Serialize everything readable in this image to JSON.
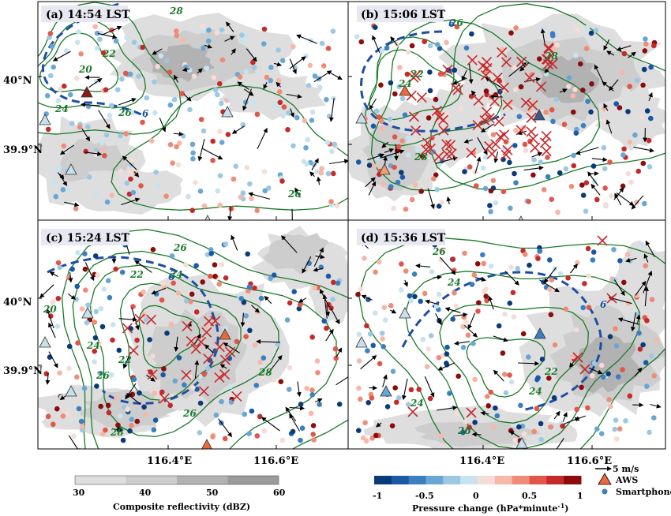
{
  "chart_data": {
    "type": "map",
    "panels": [
      {
        "title": "(a) 14:54 LST",
        "contour_labels": [
          "28",
          "20",
          "22",
          "24",
          "26",
          "26",
          "6"
        ]
      },
      {
        "title": "(b) 15:06 LST",
        "contour_labels": [
          "26",
          "28",
          "24",
          "22",
          "28",
          "6"
        ]
      },
      {
        "title": "(c) 15:24 LST",
        "contour_labels": [
          "26",
          "22",
          "24",
          "20",
          "24",
          "22",
          "26",
          "28",
          "26",
          "28",
          "6"
        ]
      },
      {
        "title": "(d) 15:36 LST",
        "contour_labels": [
          "26",
          "24",
          "24",
          "24",
          "22",
          "26",
          "6"
        ]
      }
    ],
    "x_ticks": [
      "116.4°E",
      "116.6°E"
    ],
    "y_ticks": [
      "40°N",
      "39.9°N"
    ],
    "reflectivity_colorbar": {
      "label": "Composite reflectivity (dBZ)",
      "ticks": [
        "30",
        "40",
        "50",
        "60"
      ],
      "colors": [
        "#dedede",
        "#cdcdcd",
        "#b2b2b2",
        "#9b9b9b"
      ]
    },
    "pressure_colorbar": {
      "label": "Pressure change (hPa*minute",
      "label_sup": "-1",
      "label_end": ")",
      "ticks": [
        "-1",
        "-0.5",
        "0",
        "0.5",
        "1"
      ],
      "colors": [
        "#0b3a78",
        "#1a5aa5",
        "#3b7fc0",
        "#6aa6d4",
        "#9cc8e4",
        "#c8e3f0",
        "#f6dcd6",
        "#f6b8a8",
        "#ee8c78",
        "#e0574a",
        "#c52a2a",
        "#8a0c0c"
      ]
    },
    "legend": {
      "wind_label": "5 m/s",
      "aws_label": "AWS",
      "smartphone_label": "Smartphone",
      "aws_color": "#e86a3c",
      "smartphone_color": "#3b7fc0"
    },
    "colors": {
      "contour": "#1a7a2a",
      "dashed_6": "#1e4ea3",
      "cross": "#c8282a"
    }
  }
}
